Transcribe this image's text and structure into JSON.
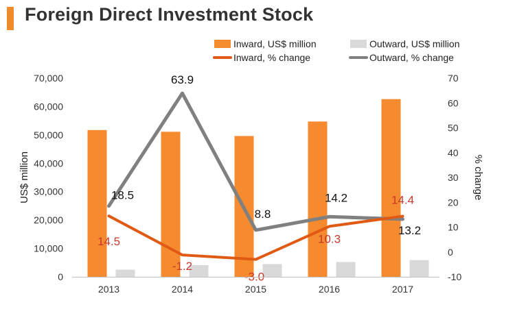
{
  "title": "Foreign Direct Investment Stock",
  "colors": {
    "accent": "#f08a2b",
    "inward_bar": "#f58a2f",
    "outward_bar": "#d9d9d9",
    "inward_line": "#e05a14",
    "outward_line": "#808080",
    "inward_label": "#c7392a"
  },
  "chart_data": {
    "type": "bar",
    "categories": [
      "2013",
      "2014",
      "2015",
      "2016",
      "2017"
    ],
    "series": [
      {
        "name": "Inward, US$ million",
        "type": "bar",
        "axis": "left",
        "values": [
          51700,
          51100,
          49600,
          54700,
          62600
        ]
      },
      {
        "name": "Outward, US$ million",
        "type": "bar",
        "axis": "left",
        "values": [
          2500,
          4100,
          4500,
          5200,
          5900
        ]
      },
      {
        "name": "Inward, % change",
        "type": "line",
        "axis": "right",
        "values": [
          14.5,
          -1.2,
          -3.0,
          10.3,
          14.4
        ],
        "labels": [
          "14.5",
          "-1.2",
          "-3.0",
          "10.3",
          "14.4"
        ]
      },
      {
        "name": "Outward, % change",
        "type": "line",
        "axis": "right",
        "values": [
          18.5,
          63.9,
          8.8,
          14.2,
          13.2
        ],
        "labels": [
          "18.5",
          "63.9",
          "8.8",
          "14.2",
          "13.2"
        ]
      }
    ],
    "ylabel": "US$ million",
    "ylabel_right": "% change",
    "ylim": [
      0,
      70000
    ],
    "ylim_right": [
      -10,
      70
    ],
    "yticks": [
      "0",
      "10,000",
      "20,000",
      "30,000",
      "40,000",
      "50,000",
      "60,000",
      "70,000"
    ],
    "yticks_right": [
      "-10",
      "0",
      "10",
      "20",
      "30",
      "40",
      "50",
      "60",
      "70"
    ],
    "legend_position": "top",
    "grid": false
  }
}
